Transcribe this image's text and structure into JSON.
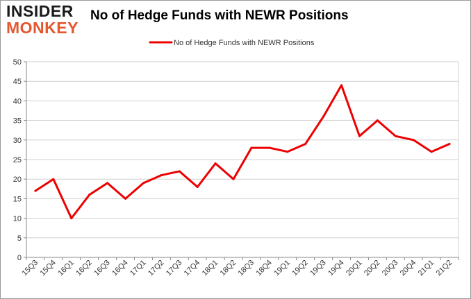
{
  "logo": {
    "line1": "INSIDER",
    "line2": "MONKEY"
  },
  "colors": {
    "series": "#ee0000",
    "grid": "#d0d0d0",
    "axis": "#888888"
  },
  "chart_data": {
    "type": "line",
    "title": "No of Hedge Funds with NEWR Positions",
    "xlabel": "",
    "ylabel": "",
    "ylim": [
      0,
      50
    ],
    "yticks": [
      0,
      5,
      10,
      15,
      20,
      25,
      30,
      35,
      40,
      45,
      50
    ],
    "grid": true,
    "legend_position": "top-center",
    "categories": [
      "15Q3",
      "15Q4",
      "16Q1",
      "16Q2",
      "16Q3",
      "16Q4",
      "17Q1",
      "17Q2",
      "17Q3",
      "17Q4",
      "18Q1",
      "18Q2",
      "18Q3",
      "18Q4",
      "19Q1",
      "19Q2",
      "19Q3",
      "19Q4",
      "20Q1",
      "20Q2",
      "20Q3",
      "20Q4",
      "21Q1",
      "21Q2"
    ],
    "series": [
      {
        "name": "No of Hedge Funds with NEWR Positions",
        "values": [
          17,
          20,
          10,
          16,
          19,
          15,
          19,
          21,
          22,
          18,
          24,
          20,
          28,
          28,
          27,
          29,
          36,
          44,
          31,
          35,
          31,
          30,
          27,
          29
        ]
      }
    ]
  }
}
